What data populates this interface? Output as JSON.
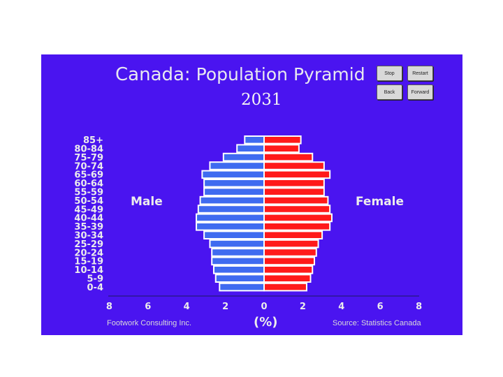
{
  "colors": {
    "background": "#4a14f0",
    "male": "#3f6bf0",
    "female": "#ff1a1a",
    "bar_outline": "#ffffff"
  },
  "header": {
    "title_country": "Canada:",
    "title_rest": " Population Pyramid",
    "year": "2031"
  },
  "buttons": {
    "stop": "Stop",
    "restart": "Restart",
    "back": "Back",
    "forward": "Forward"
  },
  "labels": {
    "male": "Male",
    "female": "Female"
  },
  "footer": {
    "left": "Footwork Consulting Inc.",
    "right": "Source: Statistics Canada"
  },
  "chart_data": {
    "type": "bar",
    "orientation": "horizontal-pyramid",
    "xlabel": "(%)",
    "xlim": [
      -8,
      8
    ],
    "xticks": [
      "8",
      "6",
      "4",
      "2",
      "0",
      "2",
      "4",
      "6",
      "8"
    ],
    "categories": [
      "85+",
      "80-84",
      "75-79",
      "70-74",
      "65-69",
      "60-64",
      "55-59",
      "50-54",
      "45-49",
      "40-44",
      "35-39",
      "30-34",
      "25-29",
      "20-24",
      "15-19",
      "10-14",
      "5-9",
      "0-4"
    ],
    "series": [
      {
        "name": "Male",
        "values": [
          1.0,
          1.4,
          2.1,
          2.8,
          3.2,
          3.1,
          3.1,
          3.3,
          3.4,
          3.5,
          3.5,
          3.1,
          2.8,
          2.7,
          2.7,
          2.6,
          2.5,
          2.3
        ]
      },
      {
        "name": "Female",
        "values": [
          1.9,
          1.8,
          2.5,
          3.1,
          3.4,
          3.1,
          3.1,
          3.3,
          3.4,
          3.5,
          3.4,
          3.0,
          2.8,
          2.7,
          2.6,
          2.5,
          2.4,
          2.2
        ]
      }
    ]
  }
}
